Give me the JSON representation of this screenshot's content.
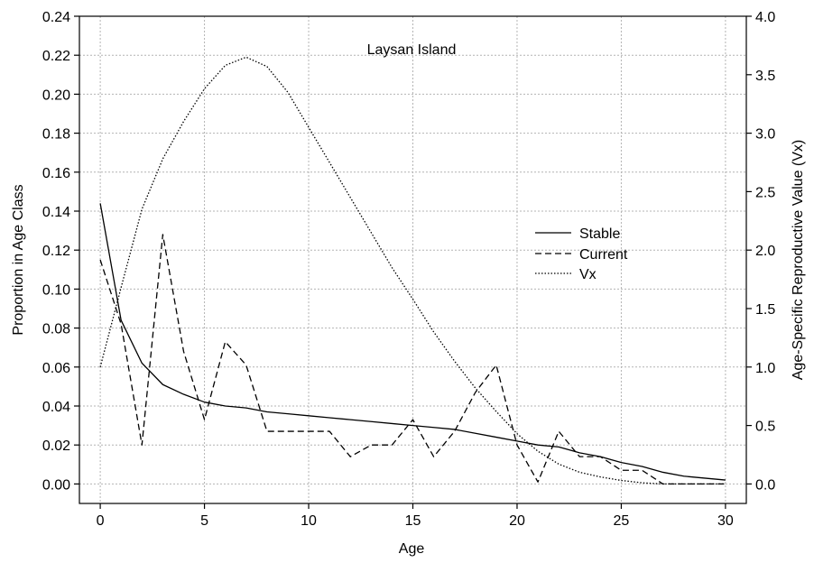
{
  "chart_data": {
    "type": "line",
    "title": "Laysan Island",
    "xlabel": "Age",
    "ylabel": "Proportion in Age Class",
    "y2label": "Age-Specific Reproductive Value (Vx)",
    "xlim": [
      -1,
      31
    ],
    "ylim": [
      -0.01,
      0.24
    ],
    "y2lim": [
      -0.1666667,
      4.0
    ],
    "xticks": [
      0,
      5,
      10,
      15,
      20,
      25,
      30
    ],
    "xtick_labels": [
      "0",
      "5",
      "10",
      "15",
      "20",
      "25",
      "30"
    ],
    "yticks": [
      0.0,
      0.02,
      0.04,
      0.06,
      0.08,
      0.1,
      0.12,
      0.14,
      0.16,
      0.18,
      0.2,
      0.22,
      0.24
    ],
    "ytick_labels": [
      "0.00",
      "0.02",
      "0.04",
      "0.06",
      "0.08",
      "0.10",
      "0.12",
      "0.14",
      "0.16",
      "0.18",
      "0.20",
      "0.22",
      "0.24"
    ],
    "y2ticks": [
      0.0,
      0.5,
      1.0,
      1.5,
      2.0,
      2.5,
      3.0,
      3.5,
      4.0
    ],
    "y2tick_labels": [
      "0.0",
      "0.5",
      "1.0",
      "1.5",
      "2.0",
      "2.5",
      "3.0",
      "3.5",
      "4.0"
    ],
    "grid": true,
    "legend_position": "right-middle",
    "series": [
      {
        "name": "Stable",
        "axis": "left",
        "style": "solid",
        "x": [
          0,
          1,
          2,
          3,
          4,
          5,
          6,
          7,
          8,
          9,
          10,
          11,
          12,
          13,
          14,
          15,
          16,
          17,
          18,
          19,
          20,
          21,
          22,
          23,
          24,
          25,
          26,
          27,
          28,
          29,
          30
        ],
        "values": [
          0.144,
          0.084,
          0.062,
          0.051,
          0.046,
          0.042,
          0.04,
          0.039,
          0.037,
          0.036,
          0.035,
          0.034,
          0.033,
          0.032,
          0.031,
          0.03,
          0.029,
          0.028,
          0.026,
          0.024,
          0.022,
          0.02,
          0.019,
          0.016,
          0.014,
          0.011,
          0.009,
          0.006,
          0.004,
          0.003,
          0.002
        ]
      },
      {
        "name": "Current",
        "axis": "left",
        "style": "dashed",
        "x": [
          0,
          1,
          2,
          3,
          4,
          5,
          6,
          7,
          8,
          9,
          10,
          11,
          12,
          13,
          14,
          15,
          16,
          17,
          18,
          19,
          20,
          21,
          22,
          23,
          24,
          25,
          26,
          27,
          28,
          29,
          30
        ],
        "values": [
          0.115,
          0.082,
          0.02,
          0.128,
          0.068,
          0.033,
          0.073,
          0.061,
          0.027,
          0.027,
          0.027,
          0.027,
          0.014,
          0.02,
          0.02,
          0.033,
          0.014,
          0.027,
          0.047,
          0.061,
          0.02,
          0.001,
          0.027,
          0.014,
          0.014,
          0.007,
          0.007,
          0.0,
          0.0,
          0.0,
          0.0
        ]
      },
      {
        "name": "Vx",
        "axis": "right",
        "style": "dotted",
        "x": [
          0,
          1,
          2,
          3,
          4,
          5,
          6,
          7,
          8,
          9,
          10,
          11,
          12,
          13,
          14,
          15,
          16,
          17,
          18,
          19,
          20,
          21,
          22,
          23,
          24,
          25,
          26,
          27,
          28,
          29,
          30
        ],
        "values": [
          1.0,
          1.68,
          2.35,
          2.78,
          3.1,
          3.38,
          3.58,
          3.65,
          3.57,
          3.35,
          3.05,
          2.75,
          2.45,
          2.15,
          1.85,
          1.58,
          1.3,
          1.05,
          0.82,
          0.62,
          0.43,
          0.28,
          0.17,
          0.1,
          0.06,
          0.03,
          0.01,
          0.0,
          0.0,
          0.0,
          0.0
        ]
      }
    ]
  }
}
